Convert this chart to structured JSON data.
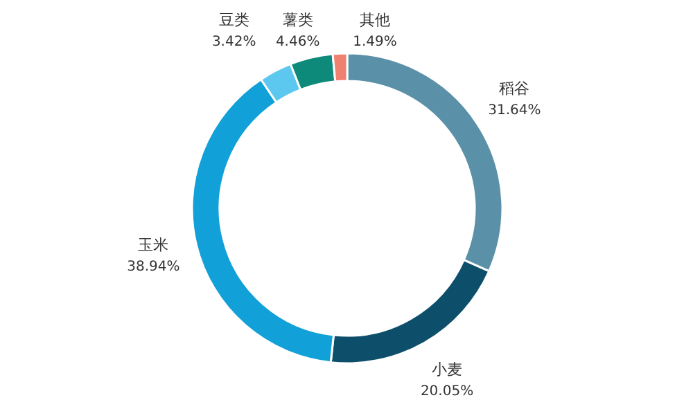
{
  "chart_data": {
    "type": "donut",
    "categories": [
      "稻谷",
      "小麦",
      "玉米",
      "豆类",
      "薯类",
      "其他"
    ],
    "values": [
      31.64,
      20.05,
      38.94,
      3.42,
      4.46,
      1.49
    ],
    "colors": [
      "#5a90a8",
      "#0d4f6b",
      "#12a0d8",
      "#5cc8f0",
      "#0e8a7a",
      "#f08070"
    ],
    "value_labels": [
      "31.64%",
      "20.05%",
      "38.94%",
      "3.42%",
      "4.46%",
      "1.49%"
    ]
  }
}
